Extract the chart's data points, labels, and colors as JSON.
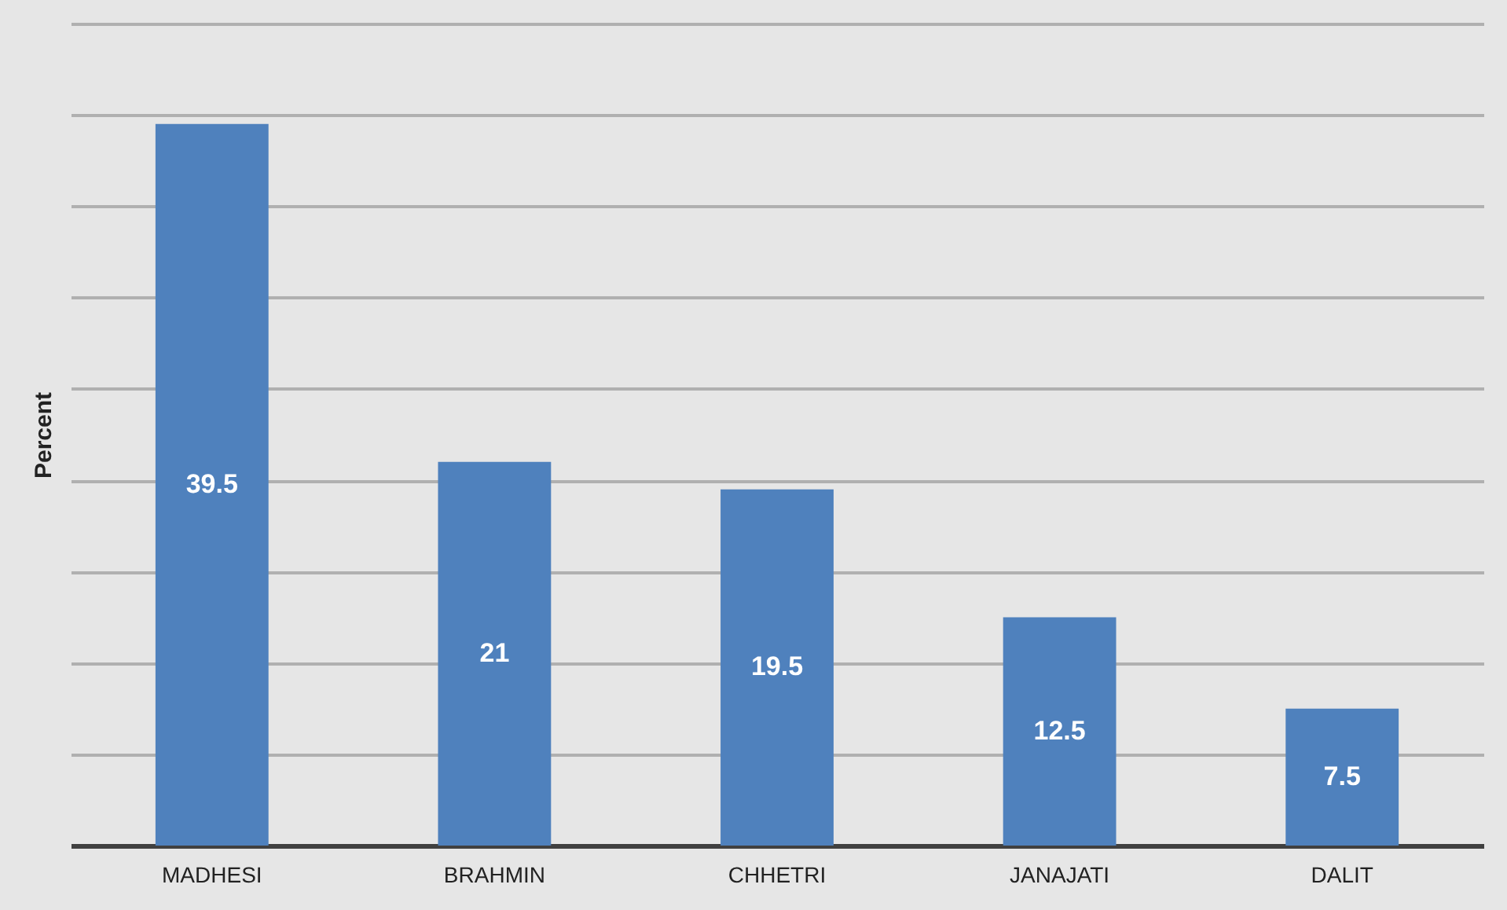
{
  "chart_data": {
    "type": "bar",
    "ylabel": "Percent",
    "categories": [
      "MADHESI",
      "BRAHMIN",
      "CHHETRI",
      "JANAJATI",
      "DALIT"
    ],
    "values": [
      39.5,
      21,
      19.5,
      12.5,
      7.5
    ],
    "color": "#4f81bd",
    "ylim": [
      0,
      45
    ],
    "yticks": [
      {
        "value": 0,
        "label": null
      },
      {
        "value": 5,
        "label": null
      },
      {
        "value": 10,
        "label": null
      },
      {
        "value": 15,
        "label": null
      },
      {
        "value": 20,
        "label": null
      },
      {
        "value": 25,
        "label": null
      },
      {
        "value": 30,
        "label": null
      },
      {
        "value": 35,
        "label": null
      },
      {
        "value": 40,
        "label": null
      },
      {
        "value": 45,
        "label": null
      }
    ],
    "grid": "y",
    "tick_labels": "x",
    "data_labels": true
  }
}
